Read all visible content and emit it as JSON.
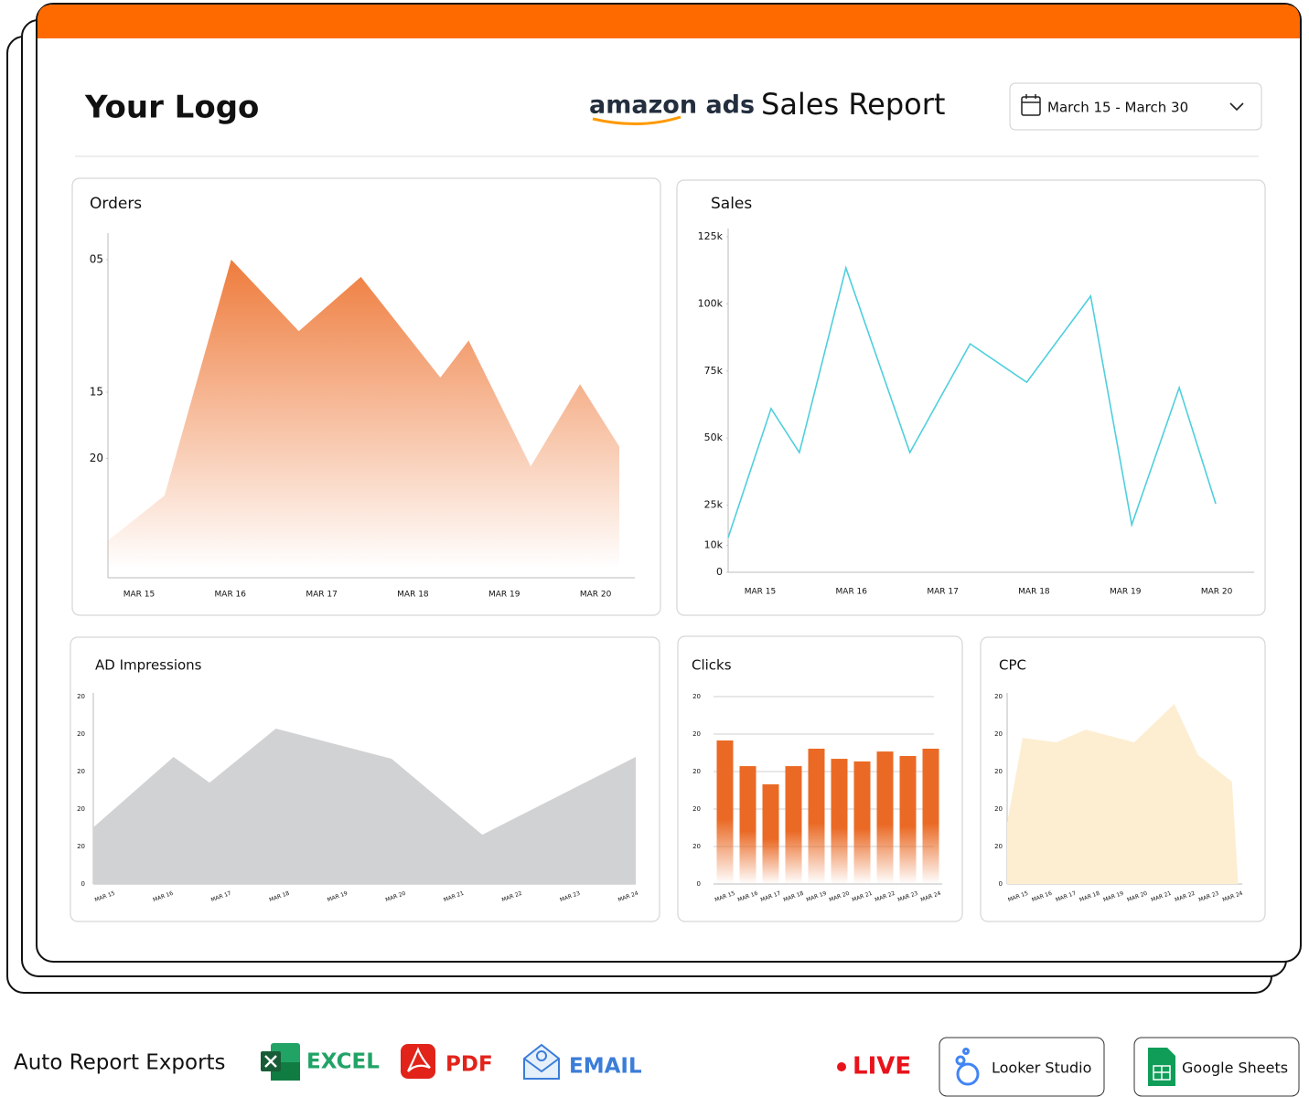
{
  "header": {
    "logo": "Your Logo",
    "brand": "amazon ads",
    "title": "Sales Report",
    "date_range": "March 15 - March 30"
  },
  "chart_data": [
    {
      "type": "area",
      "title": "Orders",
      "color": "#ee7a3a",
      "x": [
        -0.34,
        0.28,
        1.01,
        1.75,
        2.43,
        3.3,
        3.61,
        4.29,
        4.83,
        5.26
      ],
      "values": [
        26.2,
        22.8,
        5.0,
        10.4,
        6.3,
        13.9,
        11.1,
        20.6,
        14.4,
        19.1
      ],
      "xlim": [
        -0.34,
        5.43
      ],
      "xticks": [
        {
          "value": 0,
          "label": "MAR 15"
        },
        {
          "value": 1,
          "label": "MAR 16"
        },
        {
          "value": 2,
          "label": "MAR 17"
        },
        {
          "value": 3,
          "label": "MAR 18"
        },
        {
          "value": 4,
          "label": "MAR 19"
        },
        {
          "value": 5,
          "label": "MAR 20"
        }
      ],
      "ylim": [
        29,
        3
      ],
      "yticks": [
        {
          "value": 5,
          "label": "05"
        },
        15,
        20
      ]
    },
    {
      "type": "line",
      "title": "Sales",
      "color": "#4fcfdc",
      "x": [
        -0.35,
        0.12,
        0.43,
        0.94,
        1.64,
        2.3,
        2.92,
        3.62,
        4.07,
        4.59,
        4.99
      ],
      "values": [
        12900,
        61000,
        44600,
        113400,
        44600,
        85100,
        70800,
        102900,
        17700,
        68800,
        25500
      ],
      "xlim": [
        -0.35,
        5.41
      ],
      "xticks": [
        {
          "value": 0,
          "label": "MAR 15"
        },
        {
          "value": 1,
          "label": "MAR 16"
        },
        {
          "value": 2,
          "label": "MAR 17"
        },
        {
          "value": 3,
          "label": "MAR 18"
        },
        {
          "value": 4,
          "label": "MAR 19"
        },
        {
          "value": 5,
          "label": "MAR 20"
        }
      ],
      "ylim": [
        0,
        125000
      ],
      "yticks": [
        {
          "value": 125000,
          "label": "125k"
        },
        {
          "value": 100000,
          "label": "100k"
        },
        {
          "value": 75000,
          "label": "75k"
        },
        {
          "value": 50000,
          "label": "50k"
        },
        {
          "value": 25000,
          "label": "25k"
        },
        {
          "value": 10000,
          "label": "10k"
        },
        0
      ]
    },
    {
      "type": "area",
      "title": "AD Impressions",
      "color": "#d1d2d4",
      "x": [
        -0.2,
        1.18,
        1.8,
        2.94,
        4.93,
        6.49,
        9.13
      ],
      "values": [
        30.2,
        67.8,
        54.1,
        82.9,
        66.8,
        26.3,
        67.8
      ],
      "xlim": [
        -0.2,
        9.13
      ],
      "xticks": [
        {
          "value": 0,
          "label": "MAR 15"
        },
        {
          "value": 1,
          "label": "MAR 16"
        },
        {
          "value": 2,
          "label": "MAR 17"
        },
        {
          "value": 3,
          "label": "MAR 18"
        },
        {
          "value": 4,
          "label": "MAR 19"
        },
        {
          "value": 5,
          "label": "MAR 20"
        },
        {
          "value": 6,
          "label": "MAR 21"
        },
        {
          "value": 7,
          "label": "MAR 22"
        },
        {
          "value": 8,
          "label": "MAR 23"
        },
        {
          "value": 9,
          "label": "MAR 24"
        }
      ],
      "ylim": [
        0,
        100
      ],
      "y_labels": [
        "20",
        "20",
        "20",
        "20",
        "20",
        "0"
      ]
    },
    {
      "type": "bar",
      "title": "Clicks",
      "color": "#ea6a25",
      "categories": [
        "MAR 15",
        "MAR 16",
        "MAR 17",
        "MAR 18",
        "MAR 19",
        "MAR 20",
        "MAR 21",
        "MAR 22",
        "MAR 23",
        "MAR 24"
      ],
      "values": [
        76.6,
        62.9,
        53.2,
        62.9,
        72.2,
        66.8,
        65.4,
        70.7,
        68.3,
        72.2
      ],
      "ylim": [
        0,
        100
      ],
      "y_labels": [
        "20",
        "20",
        "20",
        "20",
        "20",
        "0"
      ],
      "grid": true
    },
    {
      "type": "area",
      "title": "CPC",
      "color": "#fdeed2",
      "x": [
        -0.46,
        0.19,
        1.61,
        2.84,
        4.87,
        6.55,
        7.55,
        8.97,
        9.23
      ],
      "values": [
        32.7,
        78.0,
        75.6,
        82.4,
        75.6,
        96.1,
        68.8,
        54.6,
        0
      ],
      "xlim": [
        -0.46,
        9.4
      ],
      "xticks": [
        {
          "value": 0,
          "label": "MAR 15"
        },
        {
          "value": 1,
          "label": "MAR 16"
        },
        {
          "value": 2,
          "label": "MAR 17"
        },
        {
          "value": 3,
          "label": "MAR 18"
        },
        {
          "value": 4,
          "label": "MAR 19"
        },
        {
          "value": 5,
          "label": "MAR 20"
        },
        {
          "value": 6,
          "label": "MAR 21"
        },
        {
          "value": 7,
          "label": "MAR 22"
        },
        {
          "value": 8,
          "label": "MAR 23"
        },
        {
          "value": 9,
          "label": "MAR 24"
        }
      ],
      "ylim": [
        0,
        100
      ],
      "y_labels": [
        "20",
        "20",
        "20",
        "20",
        "20",
        "0"
      ]
    }
  ],
  "footer": {
    "label": "Auto Report Exports",
    "exports": [
      "EXCEL",
      "PDF",
      "EMAIL"
    ],
    "live": "LIVE",
    "integrations": [
      "Looker Studio",
      "Google Sheets"
    ]
  }
}
